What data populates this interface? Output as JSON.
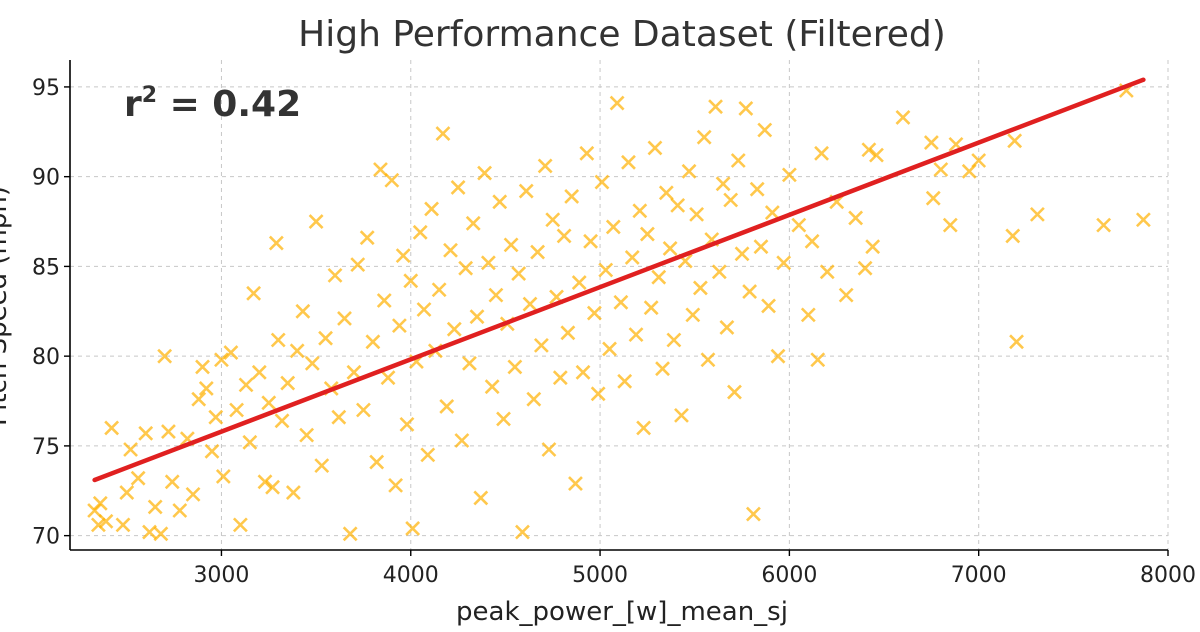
{
  "chart_data": {
    "type": "scatter",
    "title": "High Performance Dataset (Filtered)",
    "xlabel": "peak_power_[w]_mean_sj",
    "ylabel": "Pitch Speed (mph)",
    "annotation": {
      "label": "r",
      "superscript": "2",
      "value_text": " = 0.42"
    },
    "xlim": [
      2200,
      8000
    ],
    "ylim": [
      69.2,
      96.5
    ],
    "xticks": [
      3000,
      4000,
      5000,
      6000,
      7000,
      8000
    ],
    "yticks": [
      70,
      75,
      80,
      85,
      90,
      95
    ],
    "grid": true,
    "colors": {
      "points": "#FFB000",
      "fit_line": "#E02020"
    },
    "fit_line": {
      "x": [
        2330,
        7870
      ],
      "y": [
        73.1,
        95.4
      ]
    },
    "series": [
      {
        "marker": "x",
        "points": [
          [
            2330,
            71.4
          ],
          [
            2350,
            70.6
          ],
          [
            2360,
            71.8
          ],
          [
            2390,
            70.8
          ],
          [
            2420,
            76.0
          ],
          [
            2480,
            70.6
          ],
          [
            2500,
            72.4
          ],
          [
            2520,
            74.8
          ],
          [
            2560,
            73.2
          ],
          [
            2600,
            75.7
          ],
          [
            2620,
            70.2
          ],
          [
            2650,
            71.6
          ],
          [
            2680,
            70.1
          ],
          [
            2700,
            80.0
          ],
          [
            2720,
            75.8
          ],
          [
            2740,
            73.0
          ],
          [
            2780,
            71.4
          ],
          [
            2820,
            75.4
          ],
          [
            2850,
            72.3
          ],
          [
            2880,
            77.6
          ],
          [
            2900,
            79.4
          ],
          [
            2920,
            78.2
          ],
          [
            2950,
            74.7
          ],
          [
            2970,
            76.6
          ],
          [
            3000,
            79.8
          ],
          [
            3010,
            73.3
          ],
          [
            3050,
            80.2
          ],
          [
            3080,
            77.0
          ],
          [
            3100,
            70.6
          ],
          [
            3130,
            78.4
          ],
          [
            3150,
            75.2
          ],
          [
            3170,
            83.5
          ],
          [
            3200,
            79.1
          ],
          [
            3230,
            73.0
          ],
          [
            3250,
            77.4
          ],
          [
            3270,
            72.7
          ],
          [
            3290,
            86.3
          ],
          [
            3300,
            80.9
          ],
          [
            3320,
            76.4
          ],
          [
            3350,
            78.5
          ],
          [
            3380,
            72.4
          ],
          [
            3400,
            80.3
          ],
          [
            3430,
            82.5
          ],
          [
            3450,
            75.6
          ],
          [
            3480,
            79.6
          ],
          [
            3500,
            87.5
          ],
          [
            3530,
            73.9
          ],
          [
            3550,
            81.0
          ],
          [
            3580,
            78.2
          ],
          [
            3600,
            84.5
          ],
          [
            3620,
            76.6
          ],
          [
            3650,
            82.1
          ],
          [
            3680,
            70.1
          ],
          [
            3700,
            79.1
          ],
          [
            3720,
            85.1
          ],
          [
            3750,
            77.0
          ],
          [
            3770,
            86.6
          ],
          [
            3800,
            80.8
          ],
          [
            3820,
            74.1
          ],
          [
            3840,
            90.4
          ],
          [
            3860,
            83.1
          ],
          [
            3880,
            78.8
          ],
          [
            3900,
            89.8
          ],
          [
            3920,
            72.8
          ],
          [
            3940,
            81.7
          ],
          [
            3960,
            85.6
          ],
          [
            3980,
            76.2
          ],
          [
            4000,
            84.2
          ],
          [
            4010,
            70.4
          ],
          [
            4030,
            79.7
          ],
          [
            4050,
            86.9
          ],
          [
            4070,
            82.6
          ],
          [
            4090,
            74.5
          ],
          [
            4110,
            88.2
          ],
          [
            4130,
            80.3
          ],
          [
            4150,
            83.7
          ],
          [
            4170,
            92.4
          ],
          [
            4190,
            77.2
          ],
          [
            4210,
            85.9
          ],
          [
            4230,
            81.5
          ],
          [
            4250,
            89.4
          ],
          [
            4270,
            75.3
          ],
          [
            4290,
            84.9
          ],
          [
            4310,
            79.6
          ],
          [
            4330,
            87.4
          ],
          [
            4350,
            82.2
          ],
          [
            4370,
            72.1
          ],
          [
            4390,
            90.2
          ],
          [
            4410,
            85.2
          ],
          [
            4430,
            78.3
          ],
          [
            4450,
            83.4
          ],
          [
            4470,
            88.6
          ],
          [
            4490,
            76.5
          ],
          [
            4510,
            81.8
          ],
          [
            4530,
            86.2
          ],
          [
            4550,
            79.4
          ],
          [
            4570,
            84.6
          ],
          [
            4590,
            70.2
          ],
          [
            4610,
            89.2
          ],
          [
            4630,
            82.9
          ],
          [
            4650,
            77.6
          ],
          [
            4670,
            85.8
          ],
          [
            4690,
            80.6
          ],
          [
            4710,
            90.6
          ],
          [
            4730,
            74.8
          ],
          [
            4750,
            87.6
          ],
          [
            4770,
            83.3
          ],
          [
            4790,
            78.8
          ],
          [
            4810,
            86.7
          ],
          [
            4830,
            81.3
          ],
          [
            4850,
            88.9
          ],
          [
            4870,
            72.9
          ],
          [
            4890,
            84.1
          ],
          [
            4910,
            79.1
          ],
          [
            4930,
            91.3
          ],
          [
            4950,
            86.4
          ],
          [
            4970,
            82.4
          ],
          [
            4990,
            77.9
          ],
          [
            5010,
            89.7
          ],
          [
            5030,
            84.8
          ],
          [
            5050,
            80.4
          ],
          [
            5070,
            87.2
          ],
          [
            5090,
            94.1
          ],
          [
            5110,
            83.0
          ],
          [
            5130,
            78.6
          ],
          [
            5150,
            90.8
          ],
          [
            5170,
            85.5
          ],
          [
            5190,
            81.2
          ],
          [
            5210,
            88.1
          ],
          [
            5230,
            76.0
          ],
          [
            5250,
            86.8
          ],
          [
            5270,
            82.7
          ],
          [
            5290,
            91.6
          ],
          [
            5310,
            84.4
          ],
          [
            5330,
            79.3
          ],
          [
            5350,
            89.1
          ],
          [
            5370,
            86.0
          ],
          [
            5390,
            80.9
          ],
          [
            5410,
            88.4
          ],
          [
            5430,
            76.7
          ],
          [
            5450,
            85.3
          ],
          [
            5470,
            90.3
          ],
          [
            5490,
            82.3
          ],
          [
            5510,
            87.9
          ],
          [
            5530,
            83.8
          ],
          [
            5550,
            92.2
          ],
          [
            5570,
            79.8
          ],
          [
            5590,
            86.5
          ],
          [
            5610,
            93.9
          ],
          [
            5630,
            84.7
          ],
          [
            5650,
            89.6
          ],
          [
            5670,
            81.6
          ],
          [
            5690,
            88.7
          ],
          [
            5710,
            78.0
          ],
          [
            5730,
            90.9
          ],
          [
            5750,
            85.7
          ],
          [
            5770,
            93.8
          ],
          [
            5790,
            83.6
          ],
          [
            5810,
            71.2
          ],
          [
            5830,
            89.3
          ],
          [
            5850,
            86.1
          ],
          [
            5870,
            92.6
          ],
          [
            5890,
            82.8
          ],
          [
            5910,
            88.0
          ],
          [
            5940,
            80.0
          ],
          [
            5970,
            85.2
          ],
          [
            6000,
            90.1
          ],
          [
            6050,
            87.3
          ],
          [
            6100,
            82.3
          ],
          [
            6120,
            86.4
          ],
          [
            6150,
            79.8
          ],
          [
            6170,
            91.3
          ],
          [
            6200,
            84.7
          ],
          [
            6250,
            88.6
          ],
          [
            6300,
            83.4
          ],
          [
            6350,
            87.7
          ],
          [
            6400,
            84.9
          ],
          [
            6420,
            91.5
          ],
          [
            6440,
            86.1
          ],
          [
            6460,
            91.2
          ],
          [
            6600,
            93.3
          ],
          [
            6750,
            91.9
          ],
          [
            6760,
            88.8
          ],
          [
            6800,
            90.4
          ],
          [
            6850,
            87.3
          ],
          [
            6880,
            91.8
          ],
          [
            6950,
            90.3
          ],
          [
            7000,
            90.9
          ],
          [
            7180,
            86.7
          ],
          [
            7190,
            92.0
          ],
          [
            7200,
            80.8
          ],
          [
            7310,
            87.9
          ],
          [
            7660,
            87.3
          ],
          [
            7780,
            94.8
          ],
          [
            7870,
            87.6
          ]
        ]
      }
    ]
  }
}
